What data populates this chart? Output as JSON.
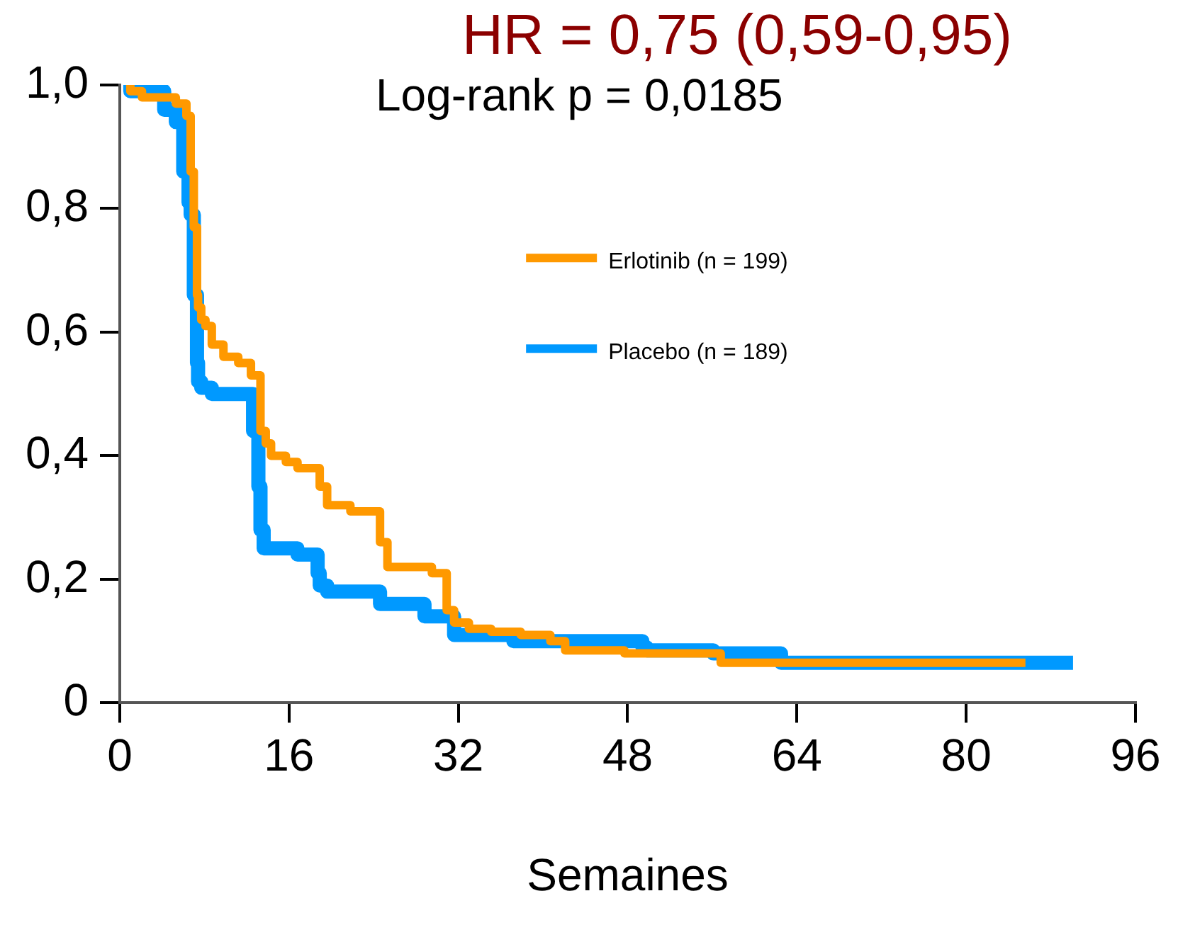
{
  "chart_data": {
    "type": "step",
    "title": "HR = 0,75 (0,59-0,95)",
    "xlabel": "Semaines",
    "annotations": [
      "Log-rank p = 0,0185"
    ],
    "xlim": [
      0,
      96
    ],
    "xticks": [
      0,
      16,
      32,
      48,
      64,
      80,
      96
    ],
    "ylim": [
      0,
      1
    ],
    "yticks": [
      0,
      {
        "value": 0.2,
        "label": "0,2"
      },
      {
        "value": 0.4,
        "label": "0,4"
      },
      {
        "value": 0.6,
        "label": "0,6"
      },
      {
        "value": 0.8,
        "label": "0,8"
      },
      {
        "value": 1,
        "label": "1,0"
      }
    ],
    "grid": false,
    "legend": "top right",
    "line_style": "solid",
    "marker": "none",
    "series": [
      {
        "name": "Erlotinib (n = 199)",
        "color": "#ff9900",
        "x": [
          1,
          2.1,
          3.5,
          5.3,
          6.3,
          6.7,
          7.0,
          7.3,
          7.4,
          7.7,
          8.1,
          8.7,
          9.8,
          11.2,
          12.4,
          13.3,
          13.8,
          14.3,
          15.7,
          16.8,
          18.9,
          19.6,
          19.9,
          21.8,
          24.6,
          25.3,
          26,
          29.5,
          30.9,
          31.6,
          32,
          33,
          35.1,
          37.9,
          40.7,
          42.1,
          43.5,
          47.7,
          56.8,
          68.1,
          85.6
        ],
        "values": [
          1.0,
          0.99,
          0.98,
          0.98,
          0.97,
          0.95,
          0.86,
          0.77,
          0.66,
          0.64,
          0.62,
          0.61,
          0.58,
          0.56,
          0.55,
          0.53,
          0.44,
          0.42,
          0.4,
          0.39,
          0.38,
          0.35,
          0.32,
          0.32,
          0.31,
          0.26,
          0.22,
          0.22,
          0.21,
          0.15,
          0.13,
          0.13,
          0.12,
          0.115,
          0.11,
          0.1,
          0.085,
          0.085,
          0.08,
          0.065,
          0.065
        ]
      },
      {
        "name": "Placebo (n = 189)",
        "color": "#0099ff",
        "x": [
          1,
          4.2,
          5.3,
          6.0,
          6.5,
          6.7,
          7.0,
          7.3,
          7.4,
          7.7,
          8.7,
          9.8,
          12.6,
          13.1,
          13.3,
          13.6,
          14,
          16.8,
          18.7,
          18.9,
          19.6,
          20.8,
          22.5,
          24.6,
          25.3,
          28.8,
          29.5,
          31.6,
          32,
          37.2,
          37.6,
          41.4,
          43.5,
          49.4,
          49.8,
          56.1,
          56.8,
          62.5,
          62.9,
          90.1
        ],
        "values": [
          1.0,
          0.99,
          0.96,
          0.94,
          0.86,
          0.81,
          0.79,
          0.66,
          0.55,
          0.52,
          0.51,
          0.5,
          0.5,
          0.44,
          0.35,
          0.28,
          0.25,
          0.25,
          0.24,
          0.21,
          0.19,
          0.18,
          0.18,
          0.18,
          0.16,
          0.16,
          0.14,
          0.14,
          0.11,
          0.11,
          0.1,
          0.1,
          0.1,
          0.1,
          0.09,
          0.085,
          0.08,
          0.08,
          0.065,
          0.065
        ]
      }
    ]
  }
}
